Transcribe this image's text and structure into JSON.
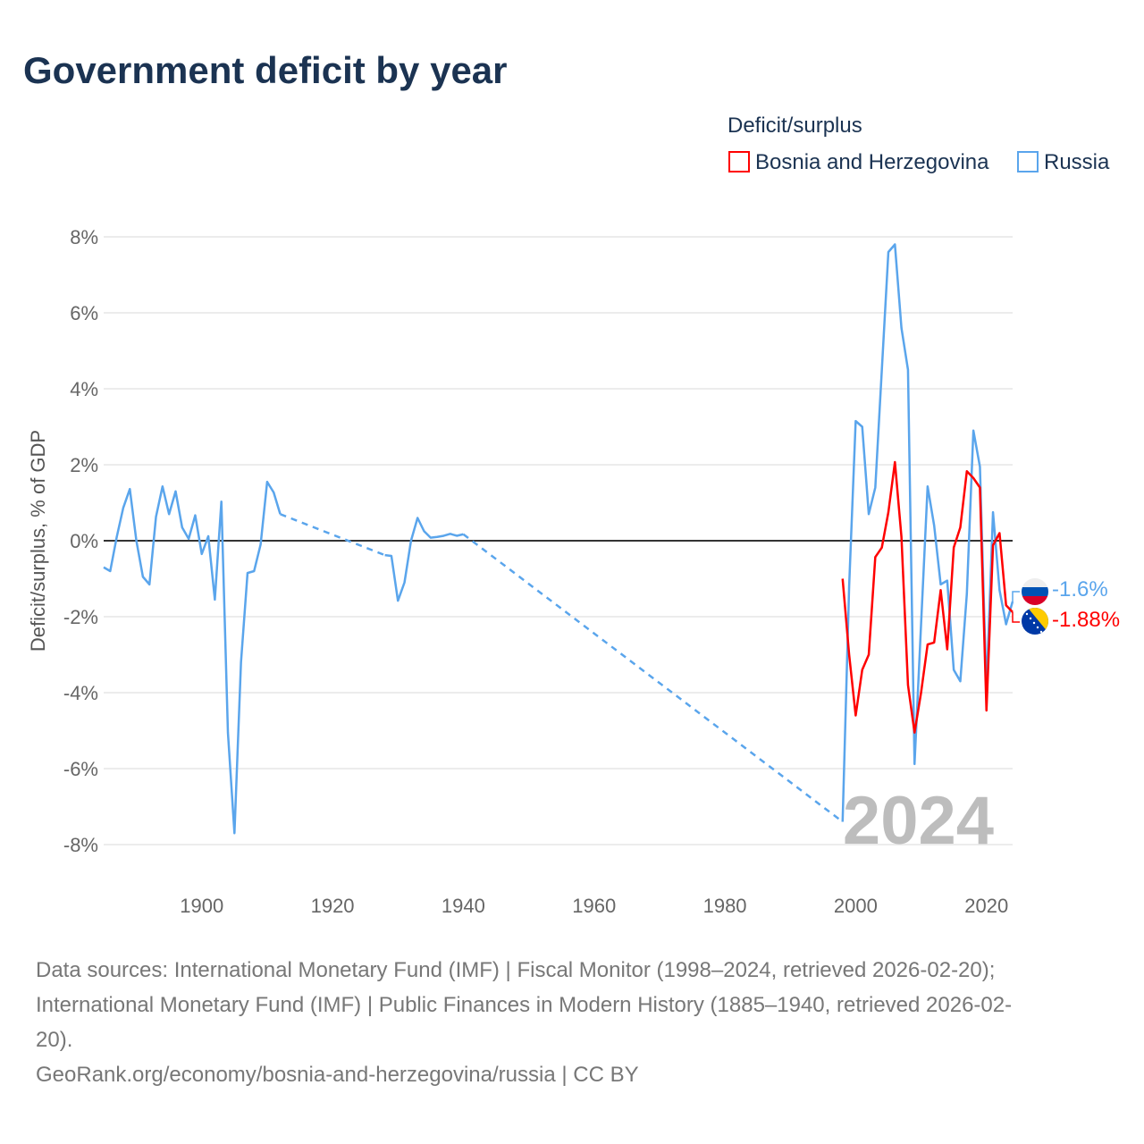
{
  "title": "Government deficit by year",
  "legend": {
    "title": "Deficit/surplus",
    "items": [
      {
        "label": "Bosnia and Herzegovina",
        "color": "#ff0000"
      },
      {
        "label": "Russia",
        "color": "#5aa5ec"
      }
    ]
  },
  "year_mark": "2024",
  "footer": {
    "line1": "Data sources: International Monetary Fund (IMF) | Fiscal Monitor (1998–2024, retrieved 2026-02-20);",
    "line2": "International Monetary Fund (IMF) | Public Finances in Modern History (1885–1940, retrieved 2026-02-",
    "line3": "20).",
    "line4": "GeoRank.org/economy/bosnia-and-herzegovina/russia | CC BY"
  },
  "chart_data": {
    "type": "line",
    "title": "Government deficit by year",
    "xlabel": "",
    "ylabel": "Deficit/surplus, % of GDP",
    "xlim": [
      1885,
      2024
    ],
    "ylim": [
      -8,
      8
    ],
    "xticks": [
      1900,
      1920,
      1940,
      1960,
      1980,
      2000,
      2020
    ],
    "xtick_labels": [
      "1900",
      "1920",
      "1940",
      "1960",
      "1980",
      "2000",
      "2020"
    ],
    "yticks": [
      -8,
      -6,
      -4,
      -2,
      0,
      2,
      4,
      6,
      8
    ],
    "ytick_labels": [
      "-8%",
      "-6%",
      "-4%",
      "-2%",
      "0%",
      "2%",
      "4%",
      "6%",
      "8%"
    ],
    "grid": true,
    "legend_position": "top-right",
    "series": [
      {
        "name": "Russia",
        "color": "#5aa5ec",
        "end_label": "-1.6%",
        "x": [
          1885,
          1886,
          1887,
          1888,
          1889,
          1890,
          1891,
          1892,
          1893,
          1894,
          1895,
          1896,
          1897,
          1898,
          1899,
          1900,
          1901,
          1902,
          1903,
          1904,
          1905,
          1906,
          1907,
          1908,
          1909,
          1910,
          1911,
          1912,
          1928,
          1929,
          1930,
          1931,
          1932,
          1933,
          1934,
          1935,
          1936,
          1937,
          1938,
          1939,
          1940,
          1998,
          1999,
          2000,
          2001,
          2002,
          2003,
          2004,
          2005,
          2006,
          2007,
          2008,
          2009,
          2010,
          2011,
          2012,
          2013,
          2014,
          2015,
          2016,
          2017,
          2018,
          2019,
          2020,
          2021,
          2022,
          2023,
          2024
        ],
        "y": [
          -0.7,
          -0.8,
          0.1,
          0.87,
          1.36,
          0.0,
          -0.95,
          -1.15,
          0.63,
          1.43,
          0.7,
          1.3,
          0.35,
          0.05,
          0.67,
          -0.35,
          0.12,
          -1.55,
          1.03,
          -5.05,
          -7.7,
          -3.2,
          -0.85,
          -0.8,
          -0.1,
          1.55,
          1.27,
          0.7,
          -0.38,
          -0.4,
          -1.58,
          -1.1,
          0.0,
          0.6,
          0.25,
          0.08,
          0.1,
          0.13,
          0.18,
          0.13,
          0.17,
          -7.4,
          -1.2,
          3.15,
          3.0,
          0.7,
          1.4,
          4.5,
          7.6,
          7.8,
          5.6,
          4.5,
          -5.88,
          -2.2,
          1.43,
          0.4,
          -1.15,
          -1.05,
          -3.4,
          -3.7,
          -1.4,
          2.9,
          1.95,
          -3.95,
          0.75,
          -1.3,
          -2.2,
          -1.6
        ]
      },
      {
        "name": "Bosnia and Herzegovina",
        "color": "#ff0000",
        "end_label": "-1.88%",
        "x": [
          1998,
          1999,
          2000,
          2001,
          2002,
          2003,
          2004,
          2005,
          2006,
          2007,
          2008,
          2009,
          2010,
          2011,
          2012,
          2013,
          2014,
          2015,
          2016,
          2017,
          2018,
          2019,
          2020,
          2021,
          2022,
          2023,
          2024
        ],
        "y": [
          -1.0,
          -3.0,
          -4.6,
          -3.4,
          -3.0,
          -0.43,
          -0.18,
          0.75,
          2.07,
          0.1,
          -3.8,
          -5.05,
          -4.0,
          -2.73,
          -2.68,
          -1.3,
          -2.86,
          -0.18,
          0.35,
          1.83,
          1.65,
          1.4,
          -4.47,
          -0.12,
          0.2,
          -1.7,
          -1.88
        ]
      }
    ]
  }
}
